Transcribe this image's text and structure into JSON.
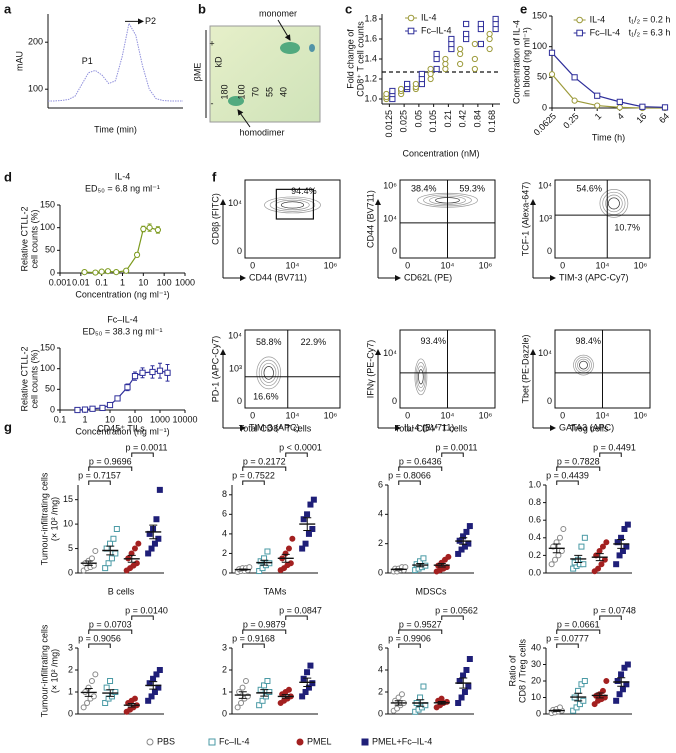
{
  "panel_labels": [
    "a",
    "b",
    "c",
    "d",
    "e",
    "f",
    "g"
  ],
  "chart_data": [
    {
      "type": "line",
      "x_label": "Time (min)",
      "y_label": [
        "mAU"
      ],
      "color": "#8f8fdc",
      "x": [
        0,
        1,
        2,
        3,
        4,
        5,
        6,
        7,
        8,
        9,
        10,
        11,
        12,
        13,
        14,
        15,
        16,
        17,
        18,
        19,
        20
      ],
      "values": [
        75,
        75,
        76,
        78,
        85,
        110,
        135,
        140,
        130,
        112,
        118,
        170,
        240,
        215,
        150,
        100,
        80,
        76,
        75,
        75,
        75
      ],
      "xlim": [
        0,
        20
      ],
      "ylim": [
        60,
        260
      ],
      "yticks": [
        100,
        200
      ],
      "annotations": [
        "P1",
        "P2"
      ]
    },
    {
      "type": "scatter",
      "x_label": "Concentration (nM)",
      "y_label": [
        "Fold change of",
        "CD8⁺ T cell counts"
      ],
      "categories": [
        "0.0125",
        "0.025",
        "0.05",
        "0.105",
        "0.21",
        "0.42",
        "0.84",
        "0.168"
      ],
      "series": [
        {
          "name": "IL-4",
          "color": "#9c9a3a",
          "marker": "circle",
          "values": [
            [
              1.0,
              1.02,
              1.05
            ],
            [
              1.05,
              1.08,
              1.1
            ],
            [
              1.1,
              1.12,
              1.15
            ],
            [
              1.2,
              1.25,
              1.3
            ],
            [
              1.3,
              1.35,
              1.4
            ],
            [
              1.35,
              1.45,
              1.5
            ],
            [
              1.3,
              1.4,
              1.55
            ],
            [
              1.5,
              1.6,
              1.65
            ]
          ]
        },
        {
          "name": "Fc–IL-4",
          "color": "#2e2e9a",
          "marker": "square",
          "values": [
            [
              1.0,
              1.05,
              1.08
            ],
            [
              1.1,
              1.12,
              1.15
            ],
            [
              1.15,
              1.2,
              1.25
            ],
            [
              1.3,
              1.4,
              1.45
            ],
            [
              1.5,
              1.55,
              1.6
            ],
            [
              1.6,
              1.65,
              1.75
            ],
            [
              1.55,
              1.7,
              1.75
            ],
            [
              1.7,
              1.75,
              1.8
            ]
          ]
        }
      ],
      "ylim": [
        0.95,
        1.85
      ],
      "yticks": [
        {
          "value": 1.0,
          "label": "1.0"
        },
        {
          "value": 1.2,
          "label": "1.2"
        },
        {
          "value": 1.4,
          "label": "1.4"
        },
        {
          "value": 1.6,
          "label": "1.6"
        },
        {
          "value": 1.8,
          "label": "1.8"
        }
      ],
      "reference_line": 1.27,
      "legend": "upper right"
    },
    {
      "type": "line",
      "x_label": "Time (h)",
      "y_label": [
        "Concentration of IL-4",
        "in blood (ng ml⁻¹)"
      ],
      "x": [
        0.0625,
        0.25,
        1,
        4,
        16,
        64
      ],
      "xlog": true,
      "xlim": [
        0.0625,
        64
      ],
      "xticks": [
        0.0625,
        0.25,
        1,
        4,
        16,
        64
      ],
      "ylim": [
        0,
        150
      ],
      "yticks": [
        0,
        50,
        100,
        150
      ],
      "legend": "upper right",
      "series": [
        {
          "name": "IL-4",
          "note": "t₁/₂ = 0.2 h",
          "color": "#9c9a3a",
          "marker": "circle",
          "values": [
            55,
            12,
            4,
            1,
            0,
            0
          ]
        },
        {
          "name": "Fc–IL-4",
          "note": "t₁/₂ = 6.3 h",
          "color": "#2e2e9a",
          "marker": "square",
          "values": [
            90,
            50,
            20,
            10,
            2,
            1
          ]
        }
      ]
    },
    {
      "type": "line",
      "title": "IL-4",
      "subtitle": "ED₅₀ = 6.8 ng ml⁻¹",
      "x_label": "Concentration (ng ml⁻¹)",
      "y_label": [
        "Relative CTLL-2",
        "cell counts (%)"
      ],
      "xlog": true,
      "xlim": [
        0.001,
        1000
      ],
      "xticks": [
        0.001,
        0.01,
        0.1,
        1,
        10,
        100,
        1000
      ],
      "ylim": [
        0,
        150
      ],
      "yticks": [
        0,
        50,
        100,
        150
      ],
      "x": [
        0.015,
        0.05,
        0.1,
        0.2,
        0.5,
        1.5,
        5,
        10,
        20,
        50
      ],
      "series": [
        {
          "color": "#7c9a1e",
          "marker": "circle",
          "values": [
            2,
            1,
            3,
            4,
            2,
            5,
            40,
            97,
            100,
            95
          ],
          "errors": [
            2,
            2,
            2,
            2,
            2,
            3,
            5,
            6,
            8,
            7
          ]
        }
      ]
    },
    {
      "type": "line",
      "title": "Fc–IL-4",
      "subtitle": "ED₅₀ = 38.3 ng ml⁻¹",
      "x_label": "Concentration (ng ml⁻¹)",
      "y_label": [
        "Relative CTLL-2",
        "cell counts (%)"
      ],
      "xlog": true,
      "xlim": [
        0.1,
        10000
      ],
      "xticks": [
        0.1,
        1,
        10,
        100,
        1000,
        10000
      ],
      "ylim": [
        0,
        150
      ],
      "yticks": [
        0,
        50,
        100,
        150
      ],
      "x": [
        0.5,
        1,
        2,
        5,
        10,
        20,
        50,
        100,
        200,
        500,
        1000,
        2000
      ],
      "series": [
        {
          "color": "#2e2e9a",
          "marker": "square",
          "values": [
            0,
            1,
            3,
            5,
            12,
            28,
            55,
            82,
            90,
            92,
            95,
            90
          ],
          "errors": [
            1,
            1,
            2,
            3,
            4,
            5,
            8,
            10,
            12,
            15,
            18,
            20
          ]
        }
      ]
    },
    {
      "type": "dotbar",
      "title": "CD45⁺ TILs",
      "y_label": [
        "Tumour-infiltrating cells",
        "(× 10² /mg)"
      ],
      "ylim": [
        0,
        18
      ],
      "yticks": [
        0,
        5,
        10,
        15
      ],
      "values": [
        [
          0.5,
          1,
          1.2,
          1.5,
          2,
          2.5,
          3,
          4.5
        ],
        [
          1,
          2,
          3,
          4,
          5,
          6,
          7,
          9
        ],
        [
          0.5,
          1,
          1.5,
          2,
          3,
          4,
          5,
          6
        ],
        [
          4,
          5,
          6,
          7,
          8,
          9,
          11,
          17
        ]
      ],
      "means": [
        2.0,
        4.6,
        2.9,
        8.4
      ],
      "errors": [
        0.45,
        0.9,
        0.7,
        1.4
      ],
      "annotations": [
        "p = 0.7157",
        "p = 0.9696",
        "p = 0.0011"
      ]
    },
    {
      "type": "dotbar",
      "title": "Total CD8⁺ T cells",
      "ylim": [
        0,
        9
      ],
      "yticks": [
        0,
        2,
        4,
        6,
        8
      ],
      "values": [
        [
          0.1,
          0.2,
          0.2,
          0.3,
          0.4,
          0.5,
          0.5,
          0.6
        ],
        [
          0.2,
          0.5,
          0.8,
          1,
          1.2,
          1.5,
          2.2
        ],
        [
          0.3,
          0.5,
          0.8,
          1,
          1.5,
          2,
          2.5,
          3.5
        ],
        [
          2.5,
          3,
          4,
          4.5,
          5.5,
          6,
          7,
          7.5
        ]
      ],
      "means": [
        0.35,
        1.06,
        1.5,
        5.0
      ],
      "errors": [
        0.06,
        0.25,
        0.4,
        0.65
      ],
      "annotations": [
        "p = 0.7522",
        "p = 0.2172",
        "p < 0.0001"
      ]
    },
    {
      "type": "dotbar",
      "title": "Total CD4⁺ T cells",
      "ylim": [
        0,
        6
      ],
      "yticks": [
        0,
        2,
        4,
        6
      ],
      "values": [
        [
          0.1,
          0.1,
          0.2,
          0.2,
          0.3,
          0.3,
          0.4,
          0.4
        ],
        [
          0.2,
          0.3,
          0.4,
          0.5,
          0.6,
          0.8,
          1
        ],
        [
          0.1,
          0.2,
          0.3,
          0.4,
          0.5,
          0.7,
          0.9,
          1.1
        ],
        [
          1.3,
          1.6,
          1.8,
          2,
          2.2,
          2.5,
          2.8,
          3.2
        ]
      ],
      "means": [
        0.25,
        0.54,
        0.53,
        2.18
      ],
      "errors": [
        0.04,
        0.11,
        0.12,
        0.22
      ],
      "annotations": [
        "p = 0.8066",
        "p = 0.6436",
        "p = 0.0011"
      ]
    },
    {
      "type": "dotbar",
      "title": "Treg cells",
      "ylim": [
        0,
        1
      ],
      "yticks": [
        {
          "value": 0,
          "label": "0.0"
        },
        {
          "value": 0.2,
          "label": "0.2"
        },
        {
          "value": 0.4,
          "label": "0.4"
        },
        {
          "value": 0.6,
          "label": "0.6"
        },
        {
          "value": 0.8,
          "label": "0.8"
        },
        {
          "value": 1,
          "label": "1.0"
        }
      ],
      "values": [
        [
          0.1,
          0.15,
          0.2,
          0.25,
          0.3,
          0.35,
          0.4,
          0.5
        ],
        [
          0.05,
          0.08,
          0.1,
          0.1,
          0.12,
          0.15,
          0.3,
          0.4
        ],
        [
          0.02,
          0.05,
          0.1,
          0.15,
          0.2,
          0.25,
          0.3,
          0.35
        ],
        [
          0.1,
          0.2,
          0.25,
          0.3,
          0.35,
          0.4,
          0.5,
          0.55
        ]
      ],
      "means": [
        0.28,
        0.16,
        0.18,
        0.33
      ],
      "errors": [
        0.05,
        0.04,
        0.04,
        0.05
      ],
      "annotations": [
        "p = 0.4439",
        "p = 0.7828",
        "p = 0.4491"
      ]
    },
    {
      "type": "dotbar",
      "title": "B cells",
      "y_label": [
        "Tumour-infiltrating cells",
        "(× 10² /mg)"
      ],
      "ylim": [
        0,
        3
      ],
      "yticks": [
        0,
        1,
        2,
        3
      ],
      "values": [
        [
          0.3,
          0.5,
          0.7,
          0.8,
          1,
          1.2,
          1.5,
          1.8
        ],
        [
          0.5,
          0.7,
          0.8,
          1,
          1.2,
          1.5
        ],
        [
          0.1,
          0.2,
          0.3,
          0.4,
          0.5,
          0.6,
          0.7
        ],
        [
          0.6,
          0.8,
          1,
          1.2,
          1.4,
          1.6,
          1.8,
          2
        ]
      ],
      "means": [
        0.98,
        0.95,
        0.4,
        1.3
      ],
      "errors": [
        0.18,
        0.15,
        0.08,
        0.17
      ],
      "annotations": [
        "p = 0.9056",
        "p = 0.0703",
        "p = 0.0140"
      ]
    },
    {
      "type": "dotbar",
      "title": "TAMs",
      "ylim": [
        0,
        3
      ],
      "yticks": [
        0,
        1,
        2,
        3
      ],
      "values": [
        [
          0.3,
          0.5,
          0.7,
          0.8,
          1,
          1.2,
          1.5
        ],
        [
          0.4,
          0.6,
          0.8,
          1,
          1.1,
          1.3,
          1.5
        ],
        [
          0.5,
          0.6,
          0.7,
          0.8,
          0.9,
          1,
          1.1
        ],
        [
          0.8,
          1,
          1.2,
          1.4,
          1.6,
          1.9,
          2.2
        ]
      ],
      "means": [
        0.86,
        0.96,
        0.8,
        1.44
      ],
      "errors": [
        0.15,
        0.15,
        0.08,
        0.19
      ],
      "annotations": [
        "p = 0.9168",
        "p = 0.9879",
        "p = 0.0847"
      ]
    },
    {
      "type": "dotbar",
      "title": "MDSCs",
      "ylim": [
        0,
        6
      ],
      "yticks": [
        0,
        2,
        4,
        6
      ],
      "values": [
        [
          0.3,
          0.5,
          0.8,
          1,
          1.2,
          1.5,
          1.8
        ],
        [
          0.2,
          0.4,
          0.6,
          0.8,
          1,
          1.5,
          2.5
        ],
        [
          0.6,
          0.8,
          1,
          1.1,
          1.2,
          1.4
        ],
        [
          1,
          1.5,
          2,
          2.5,
          3,
          3.5,
          4,
          5
        ]
      ],
      "means": [
        1.01,
        1.0,
        1.02,
        2.81
      ],
      "errors": [
        0.2,
        0.3,
        0.12,
        0.46
      ],
      "annotations": [
        "p = 0.9906",
        "p = 0.9527",
        "p = 0.0562"
      ]
    },
    {
      "type": "dotbar",
      "y_label": [
        "Ratio of",
        "CD8 / Treg cells"
      ],
      "ylim": [
        0,
        40
      ],
      "yticks": [
        0,
        10,
        20,
        30,
        40
      ],
      "values": [
        [
          0.5,
          1,
          1.5,
          2,
          2.5,
          3,
          4
        ],
        [
          2,
          4,
          6,
          8,
          10,
          14,
          18,
          20
        ],
        [
          6,
          8,
          9,
          10,
          11,
          12,
          14,
          20
        ],
        [
          8,
          12,
          15,
          18,
          20,
          24,
          28,
          30
        ]
      ],
      "means": [
        2.07,
        10.25,
        11.25,
        19.4
      ],
      "errors": [
        0.45,
        2.3,
        1.5,
        2.6
      ],
      "annotations": [
        "p = 0.0777",
        "p = 0.0661",
        "p = 0.0748"
      ]
    }
  ],
  "groups": [
    {
      "name": "PBS",
      "color": "#888888",
      "filled": false,
      "marker": "circle"
    },
    {
      "name": "Fc–IL-4",
      "color": "#4a9aa5",
      "filled": false,
      "marker": "square"
    },
    {
      "name": "PMEL",
      "color": "#a32020",
      "filled": true,
      "marker": "circle"
    },
    {
      "name": "PMEL+Fc–IL-4",
      "color": "#1f1f78",
      "filled": true,
      "marker": "square"
    }
  ],
  "gel": {
    "treatment": "βME",
    "plus": "+",
    "minus": "-",
    "unit": "kD",
    "ladder": [
      "180",
      "100",
      "70",
      "55",
      "40"
    ],
    "upper_band": "monomer",
    "lower_band": "homodimer"
  },
  "flow": [
    {
      "x_label": "CD44 (BV711)",
      "y_label": "CD8β (FITC)",
      "x_ticks": [
        "0",
        "10⁴",
        "10⁶"
      ],
      "y_ticks": [
        "10⁴",
        "0"
      ],
      "percents": [
        "94.4%"
      ]
    },
    {
      "x_label": "CD62L (PE)",
      "y_label": "CD44 (BV711)",
      "x_ticks": [
        "0",
        "10⁴",
        "10⁶"
      ],
      "y_ticks": [
        "10⁶",
        "10⁴",
        "0"
      ],
      "percents": [
        "38.4%",
        "59.3%"
      ]
    },
    {
      "x_label": "TIM-3 (APC-Cy7)",
      "y_label": "TCF-1 (Alexa-647)",
      "x_ticks": [
        "0",
        "10⁴",
        "10⁶"
      ],
      "y_ticks": [
        "10⁴",
        "10³",
        "0"
      ],
      "percents": [
        "54.6%",
        "10.7%"
      ]
    },
    {
      "x_label": "TIM-3 (APC)",
      "y_label": "PD-1 (APC-Cy7)",
      "x_ticks": [
        "0",
        "10⁴",
        "10⁶"
      ],
      "y_ticks": [
        "10⁴",
        "10³",
        "0"
      ],
      "percents": [
        "58.8%",
        "22.9%",
        "16.6%"
      ]
    },
    {
      "x_label": "IL-4 (BV711)",
      "y_label": "IFNγ (PE-Cy7)",
      "x_ticks": [
        "0",
        "10⁴",
        "10⁶"
      ],
      "y_ticks": [
        "10⁴",
        "0"
      ],
      "percents": [
        "93.4%"
      ]
    },
    {
      "x_label": "GATA3 (APC)",
      "y_label": "Tbet (PE-Dazzle)",
      "x_ticks": [
        "0",
        "10⁴",
        "10⁶"
      ],
      "y_ticks": [
        "10⁴",
        "0"
      ],
      "percents": [
        "98.4%"
      ]
    }
  ]
}
